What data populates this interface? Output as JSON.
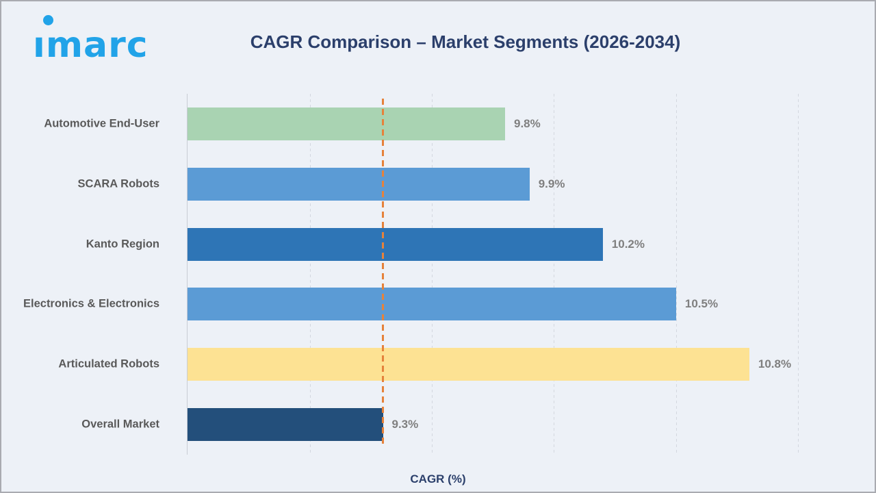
{
  "logo": {
    "text": "imarc",
    "color": "#21a3e8"
  },
  "header": {
    "title": "CAGR Comparison – Market Segments (2026-2034)"
  },
  "chart_data": {
    "type": "bar",
    "orientation": "horizontal",
    "title": "CAGR Comparison – Market Segments (2026-2034)",
    "xlabel": "CAGR (%)",
    "ylabel": "",
    "categories": [
      "Automotive End-User",
      "SCARA Robots",
      "Kanto Region",
      "Electronics & Electronics",
      "Articulated Robots",
      "Overall Market"
    ],
    "values": [
      9.8,
      9.9,
      10.2,
      10.5,
      10.8,
      9.3
    ],
    "value_labels": [
      "9.8%",
      "9.9%",
      "10.2%",
      "10.5%",
      "10.8%",
      "9.3%"
    ],
    "bar_colors": [
      "#a9d3b2",
      "#5b9bd5",
      "#2e75b6",
      "#5b9bd5",
      "#fde293",
      "#234f7b"
    ],
    "reference_line": {
      "value": 9.3,
      "color": "#e5823b",
      "style": "dashed"
    },
    "axis": {
      "min": 8.5,
      "max": 11.24,
      "gridline_step": 0.5,
      "grid": true,
      "tick_labels_visible": false,
      "legend_position": "none"
    }
  },
  "colors": {
    "background": "#edf1f7",
    "border": "#a9abb1",
    "title_text": "#2b3f6b",
    "category_label": "#595959",
    "value_label": "#7f7f7f",
    "gridline": "#d3d7df",
    "axis_line": "#c8ccd4"
  }
}
